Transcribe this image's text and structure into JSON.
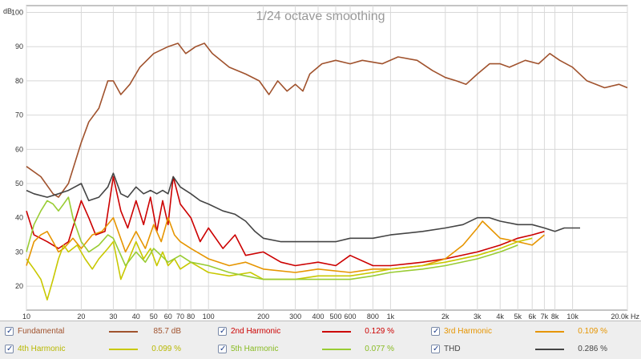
{
  "chart_data": {
    "type": "line",
    "title": "1/24 octave smoothing",
    "xscale": "log",
    "xlim": [
      10,
      20000
    ],
    "ylim": [
      13,
      102
    ],
    "ylabel": "dB",
    "xlabel": "Hz",
    "x_ticks": [
      10,
      20,
      30,
      40,
      50,
      60,
      70,
      80,
      100,
      200,
      300,
      400,
      500,
      600,
      800,
      1000,
      2000,
      3000,
      4000,
      5000,
      6000,
      7000,
      8000,
      10000,
      20000
    ],
    "x_tick_labels": [
      "10",
      "20",
      "30",
      "40",
      "50",
      "60",
      "70",
      "80",
      "100",
      "200",
      "300",
      "400",
      "500",
      "600",
      "800",
      "1k",
      "2k",
      "3k",
      "4k",
      "5k",
      "6k",
      "7k",
      "8k",
      "10k",
      "20.0k Hz"
    ],
    "y_ticks": [
      20,
      30,
      40,
      50,
      60,
      70,
      80,
      90,
      100
    ],
    "y_tick_labels": [
      "20",
      "30",
      "40",
      "50",
      "60",
      "70",
      "80",
      "90",
      "100"
    ],
    "grid": true,
    "legend_position": "bottom",
    "series": [
      {
        "name": "Fundamental",
        "color": "#a0522d",
        "value_label": "85.7 dB",
        "points": [
          [
            10,
            55
          ],
          [
            12,
            52
          ],
          [
            14,
            47
          ],
          [
            15,
            46
          ],
          [
            17,
            50
          ],
          [
            20,
            62
          ],
          [
            22,
            68
          ],
          [
            25,
            72
          ],
          [
            28,
            80
          ],
          [
            30,
            80
          ],
          [
            33,
            76
          ],
          [
            37,
            79
          ],
          [
            42,
            84
          ],
          [
            50,
            88
          ],
          [
            60,
            90
          ],
          [
            68,
            91
          ],
          [
            75,
            88
          ],
          [
            85,
            90
          ],
          [
            95,
            91
          ],
          [
            105,
            88
          ],
          [
            130,
            84
          ],
          [
            160,
            82
          ],
          [
            190,
            80
          ],
          [
            215,
            76
          ],
          [
            240,
            80
          ],
          [
            270,
            77
          ],
          [
            300,
            79
          ],
          [
            330,
            77
          ],
          [
            360,
            82
          ],
          [
            420,
            85
          ],
          [
            500,
            86
          ],
          [
            600,
            85
          ],
          [
            700,
            86
          ],
          [
            900,
            85
          ],
          [
            1100,
            87
          ],
          [
            1400,
            86
          ],
          [
            1700,
            83
          ],
          [
            2000,
            81
          ],
          [
            2300,
            80
          ],
          [
            2600,
            79
          ],
          [
            3000,
            82
          ],
          [
            3500,
            85
          ],
          [
            4000,
            85
          ],
          [
            4500,
            84
          ],
          [
            5500,
            86
          ],
          [
            6500,
            85
          ],
          [
            7500,
            88
          ],
          [
            8500,
            86
          ],
          [
            10000,
            84
          ],
          [
            12000,
            80
          ],
          [
            15000,
            78
          ],
          [
            18000,
            79
          ],
          [
            20000,
            78
          ]
        ]
      },
      {
        "name": "2nd Harmonic",
        "color": "#cc0000",
        "value_label": "0.129 %",
        "points": [
          [
            10,
            42
          ],
          [
            11,
            35
          ],
          [
            13,
            33
          ],
          [
            15,
            31
          ],
          [
            17,
            33
          ],
          [
            20,
            45
          ],
          [
            22,
            40
          ],
          [
            24,
            35
          ],
          [
            27,
            36
          ],
          [
            30,
            52
          ],
          [
            33,
            42
          ],
          [
            36,
            37
          ],
          [
            40,
            45
          ],
          [
            44,
            38
          ],
          [
            48,
            46
          ],
          [
            52,
            36
          ],
          [
            56,
            45
          ],
          [
            60,
            38
          ],
          [
            64,
            52
          ],
          [
            70,
            44
          ],
          [
            80,
            40
          ],
          [
            90,
            33
          ],
          [
            100,
            37
          ],
          [
            120,
            31
          ],
          [
            140,
            35
          ],
          [
            160,
            29
          ],
          [
            200,
            30
          ],
          [
            250,
            27
          ],
          [
            300,
            26
          ],
          [
            400,
            27
          ],
          [
            500,
            26
          ],
          [
            600,
            29
          ],
          [
            800,
            26
          ],
          [
            1000,
            26
          ],
          [
            1500,
            27
          ],
          [
            2000,
            28
          ],
          [
            3000,
            30
          ],
          [
            4000,
            32
          ],
          [
            5000,
            34
          ],
          [
            6000,
            35
          ],
          [
            7000,
            36
          ]
        ]
      },
      {
        "name": "3rd Harmonic",
        "color": "#e69500",
        "value_label": "0.109 %",
        "points": [
          [
            10,
            26
          ],
          [
            11,
            33
          ],
          [
            12,
            35
          ],
          [
            13,
            36
          ],
          [
            14,
            33
          ],
          [
            15,
            30
          ],
          [
            16,
            31
          ],
          [
            18,
            34
          ],
          [
            20,
            31
          ],
          [
            23,
            35
          ],
          [
            26,
            36
          ],
          [
            30,
            40
          ],
          [
            35,
            30
          ],
          [
            40,
            36
          ],
          [
            45,
            31
          ],
          [
            50,
            38
          ],
          [
            55,
            33
          ],
          [
            60,
            40
          ],
          [
            65,
            35
          ],
          [
            70,
            33
          ],
          [
            80,
            31
          ],
          [
            100,
            28
          ],
          [
            130,
            26
          ],
          [
            160,
            27
          ],
          [
            200,
            25
          ],
          [
            300,
            24
          ],
          [
            400,
            25
          ],
          [
            600,
            24
          ],
          [
            800,
            25
          ],
          [
            1000,
            25
          ],
          [
            1500,
            26
          ],
          [
            2000,
            28
          ],
          [
            2500,
            32
          ],
          [
            3000,
            37
          ],
          [
            3200,
            39
          ],
          [
            3500,
            37
          ],
          [
            4000,
            34
          ],
          [
            5000,
            33
          ],
          [
            6000,
            32
          ],
          [
            7000,
            35
          ]
        ]
      },
      {
        "name": "4th Harmonic",
        "color": "#c8c800",
        "value_label": "0.099 %",
        "points": [
          [
            10,
            28
          ],
          [
            11,
            25
          ],
          [
            12,
            22
          ],
          [
            13,
            16
          ],
          [
            14,
            22
          ],
          [
            15,
            28
          ],
          [
            16,
            32
          ],
          [
            17,
            30
          ],
          [
            19,
            32
          ],
          [
            21,
            28
          ],
          [
            23,
            25
          ],
          [
            25,
            28
          ],
          [
            28,
            31
          ],
          [
            30,
            33
          ],
          [
            33,
            22
          ],
          [
            36,
            27
          ],
          [
            40,
            33
          ],
          [
            44,
            28
          ],
          [
            48,
            31
          ],
          [
            52,
            26
          ],
          [
            56,
            30
          ],
          [
            60,
            26
          ],
          [
            65,
            28
          ],
          [
            70,
            25
          ],
          [
            80,
            27
          ],
          [
            100,
            24
          ],
          [
            130,
            23
          ],
          [
            170,
            24
          ],
          [
            200,
            22
          ],
          [
            300,
            22
          ],
          [
            400,
            23
          ],
          [
            600,
            23
          ],
          [
            800,
            24
          ],
          [
            1000,
            25
          ],
          [
            1500,
            26
          ],
          [
            2000,
            27
          ],
          [
            3000,
            29
          ],
          [
            4000,
            31
          ],
          [
            5000,
            33
          ],
          [
            6000,
            34
          ]
        ]
      },
      {
        "name": "5th Harmonic",
        "color": "#99cc33",
        "value_label": "0.077 %",
        "points": [
          [
            10,
            30
          ],
          [
            11,
            38
          ],
          [
            12,
            42
          ],
          [
            13,
            45
          ],
          [
            14,
            44
          ],
          [
            15,
            42
          ],
          [
            16,
            44
          ],
          [
            17,
            46
          ],
          [
            18,
            40
          ],
          [
            20,
            33
          ],
          [
            22,
            30
          ],
          [
            25,
            32
          ],
          [
            28,
            35
          ],
          [
            30,
            34
          ],
          [
            35,
            26
          ],
          [
            40,
            30
          ],
          [
            45,
            27
          ],
          [
            50,
            31
          ],
          [
            60,
            27
          ],
          [
            70,
            29
          ],
          [
            80,
            27
          ],
          [
            100,
            26
          ],
          [
            130,
            24
          ],
          [
            160,
            23
          ],
          [
            200,
            22
          ],
          [
            300,
            22
          ],
          [
            400,
            22
          ],
          [
            600,
            22
          ],
          [
            800,
            23
          ],
          [
            1000,
            24
          ],
          [
            1500,
            25
          ],
          [
            2000,
            26
          ],
          [
            3000,
            28
          ],
          [
            4000,
            30
          ],
          [
            5000,
            32
          ]
        ]
      },
      {
        "name": "THD",
        "color": "#444444",
        "value_label": "0.286 %",
        "points": [
          [
            10,
            48
          ],
          [
            11,
            47
          ],
          [
            13,
            46
          ],
          [
            15,
            47
          ],
          [
            17,
            48
          ],
          [
            20,
            50
          ],
          [
            22,
            45
          ],
          [
            25,
            46
          ],
          [
            28,
            49
          ],
          [
            30,
            53
          ],
          [
            33,
            47
          ],
          [
            36,
            46
          ],
          [
            40,
            49
          ],
          [
            44,
            47
          ],
          [
            48,
            48
          ],
          [
            52,
            47
          ],
          [
            56,
            48
          ],
          [
            60,
            47
          ],
          [
            64,
            52
          ],
          [
            70,
            49
          ],
          [
            80,
            47
          ],
          [
            90,
            45
          ],
          [
            100,
            44
          ],
          [
            120,
            42
          ],
          [
            140,
            41
          ],
          [
            160,
            39
          ],
          [
            180,
            36
          ],
          [
            200,
            34
          ],
          [
            250,
            33
          ],
          [
            300,
            33
          ],
          [
            400,
            33
          ],
          [
            500,
            33
          ],
          [
            600,
            34
          ],
          [
            800,
            34
          ],
          [
            1000,
            35
          ],
          [
            1500,
            36
          ],
          [
            2000,
            37
          ],
          [
            2500,
            38
          ],
          [
            3000,
            40
          ],
          [
            3500,
            40
          ],
          [
            4000,
            39
          ],
          [
            5000,
            38
          ],
          [
            6000,
            38
          ],
          [
            7000,
            37
          ],
          [
            8000,
            36
          ],
          [
            9000,
            37
          ],
          [
            10000,
            37
          ],
          [
            11000,
            37
          ]
        ]
      }
    ]
  }
}
